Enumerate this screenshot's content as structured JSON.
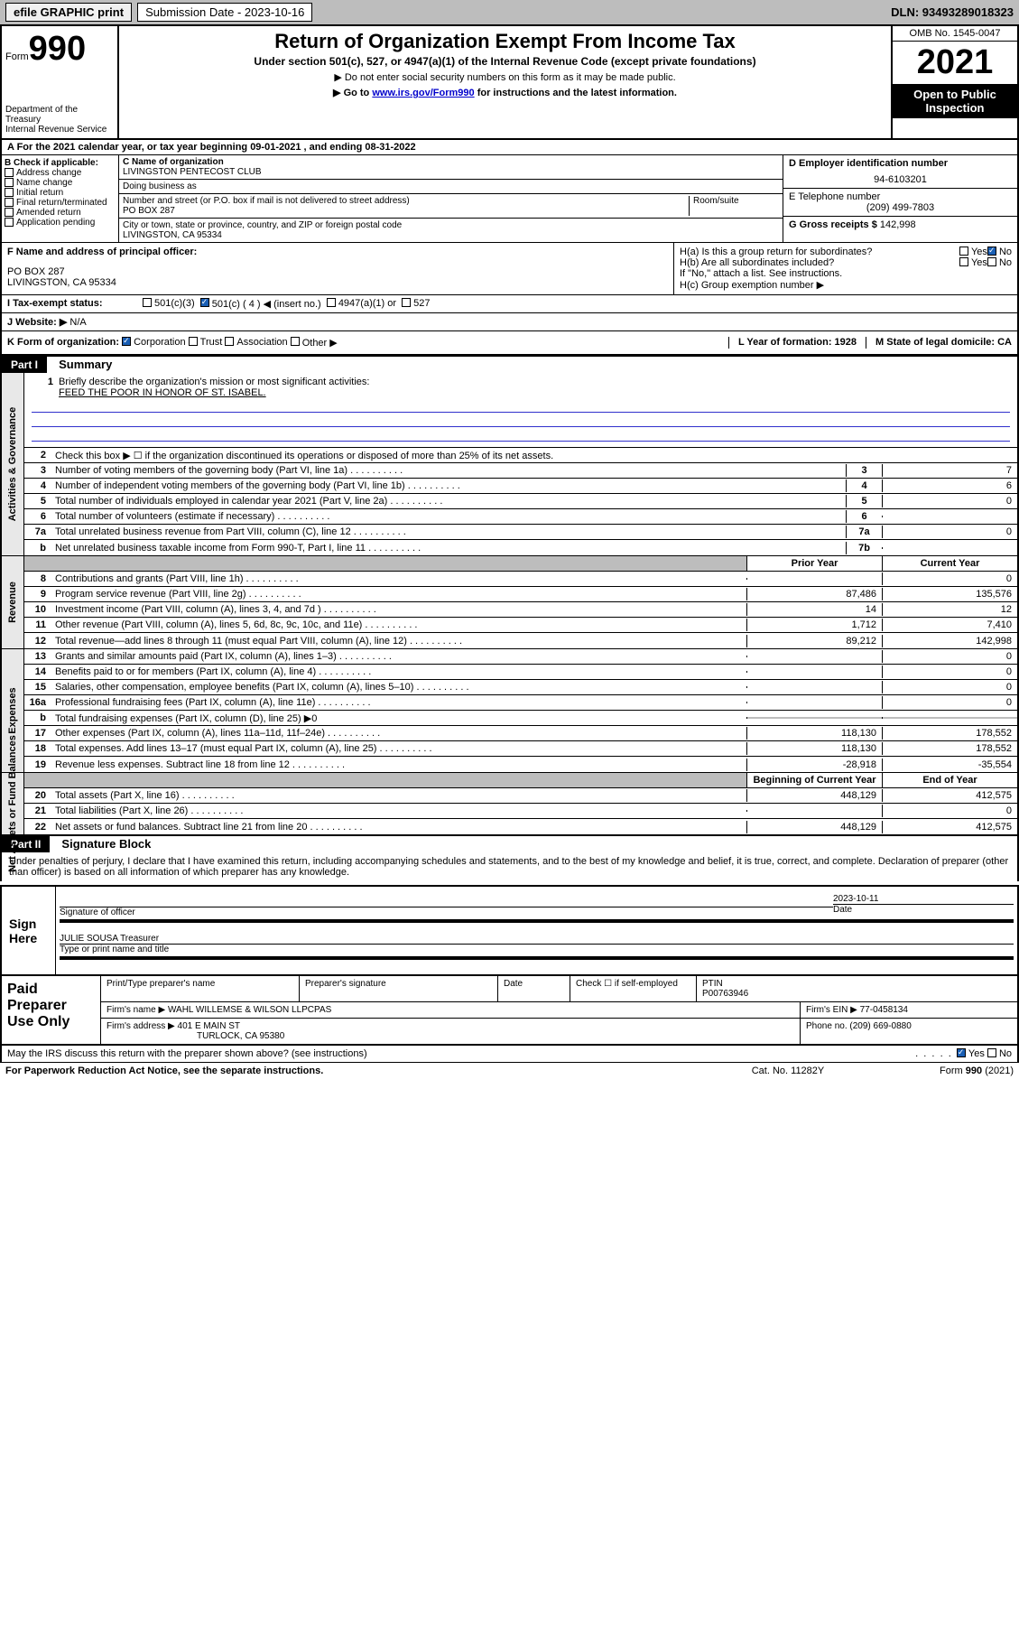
{
  "top": {
    "efile": "efile GRAPHIC print",
    "submission_label": "Submission Date - 2023-10-16",
    "dln": "DLN: 93493289018323"
  },
  "header": {
    "form_word": "Form",
    "form_num": "990",
    "title": "Return of Organization Exempt From Income Tax",
    "subtitle": "Under section 501(c), 527, or 4947(a)(1) of the Internal Revenue Code (except private foundations)",
    "note1": "▶ Do not enter social security numbers on this form as it may be made public.",
    "note2_pre": "▶ Go to ",
    "note2_link": "www.irs.gov/Form990",
    "note2_post": " for instructions and the latest information.",
    "dept": "Department of the Treasury\nInternal Revenue Service",
    "omb": "OMB No. 1545-0047",
    "year": "2021",
    "open": "Open to Public Inspection"
  },
  "period": "A For the 2021 calendar year, or tax year beginning 09-01-2021    , and ending 08-31-2022",
  "b": {
    "label": "B Check if applicable:",
    "items": [
      "Address change",
      "Name change",
      "Initial return",
      "Final return/terminated",
      "Amended return",
      "Application pending"
    ]
  },
  "c": {
    "name_hdr": "C Name of organization",
    "name": "LIVINGSTON PENTECOST CLUB",
    "dba_hdr": "Doing business as",
    "addr_hdr": "Number and street (or P.O. box if mail is not delivered to street address)",
    "room_hdr": "Room/suite",
    "addr": "PO BOX 287",
    "city_hdr": "City or town, state or province, country, and ZIP or foreign postal code",
    "city": "LIVINGSTON, CA  95334"
  },
  "d": {
    "label": "D Employer identification number",
    "value": "94-6103201"
  },
  "e": {
    "label": "E Telephone number",
    "value": "(209) 499-7803"
  },
  "g": {
    "label": "G Gross receipts $",
    "value": "142,998"
  },
  "f": {
    "label": "F  Name and address of principal officer:",
    "addr1": "PO BOX 287",
    "addr2": "LIVINGSTON, CA  95334"
  },
  "h": {
    "ha": "H(a)  Is this a group return for subordinates?",
    "hb": "H(b)  Are all subordinates included?",
    "hb_note": "If \"No,\" attach a list. See instructions.",
    "hc": "H(c)  Group exemption number ▶",
    "yes": "Yes",
    "no": "No"
  },
  "i": {
    "label": "I  Tax-exempt status:",
    "c3": "501(c)(3)",
    "c4": "501(c) ( 4 ) ◀ (insert no.)",
    "a1": "4947(a)(1) or",
    "s527": "527"
  },
  "j": {
    "label": "J  Website: ▶",
    "value": "N/A"
  },
  "k": {
    "label": "K Form of organization:",
    "corp": "Corporation",
    "trust": "Trust",
    "assoc": "Association",
    "other": "Other ▶"
  },
  "l": {
    "label": "L Year of formation: 1928"
  },
  "m": {
    "label": "M State of legal domicile: CA"
  },
  "part1": {
    "header": "Part I",
    "title": "Summary",
    "line1": "Briefly describe the organization's mission or most significant activities:",
    "mission": "FEED THE POOR IN HONOR OF ST. ISABEL.",
    "line2": "Check this box ▶ ☐  if the organization discontinued its operations or disposed of more than 25% of its net assets.",
    "prior_year": "Prior Year",
    "current_year": "Current Year",
    "begin_year": "Beginning of Current Year",
    "end_year": "End of Year"
  },
  "sides": {
    "gov": "Activities & Governance",
    "rev": "Revenue",
    "exp": "Expenses",
    "net": "Net Assets or Fund Balances"
  },
  "rows_gov": [
    {
      "n": "3",
      "label": "Number of voting members of the governing body (Part VI, line 1a)",
      "box": "3",
      "val": "7"
    },
    {
      "n": "4",
      "label": "Number of independent voting members of the governing body (Part VI, line 1b)",
      "box": "4",
      "val": "6"
    },
    {
      "n": "5",
      "label": "Total number of individuals employed in calendar year 2021 (Part V, line 2a)",
      "box": "5",
      "val": "0"
    },
    {
      "n": "6",
      "label": "Total number of volunteers (estimate if necessary)",
      "box": "6",
      "val": ""
    },
    {
      "n": "7a",
      "label": "Total unrelated business revenue from Part VIII, column (C), line 12",
      "box": "7a",
      "val": "0"
    },
    {
      "n": "b",
      "label": "Net unrelated business taxable income from Form 990-T, Part I, line 11",
      "box": "7b",
      "val": ""
    }
  ],
  "rows_rev": [
    {
      "n": "8",
      "label": "Contributions and grants (Part VIII, line 1h)",
      "prior": "",
      "curr": "0"
    },
    {
      "n": "9",
      "label": "Program service revenue (Part VIII, line 2g)",
      "prior": "87,486",
      "curr": "135,576"
    },
    {
      "n": "10",
      "label": "Investment income (Part VIII, column (A), lines 3, 4, and 7d )",
      "prior": "14",
      "curr": "12"
    },
    {
      "n": "11",
      "label": "Other revenue (Part VIII, column (A), lines 5, 6d, 8c, 9c, 10c, and 11e)",
      "prior": "1,712",
      "curr": "7,410"
    },
    {
      "n": "12",
      "label": "Total revenue—add lines 8 through 11 (must equal Part VIII, column (A), line 12)",
      "prior": "89,212",
      "curr": "142,998"
    }
  ],
  "rows_exp": [
    {
      "n": "13",
      "label": "Grants and similar amounts paid (Part IX, column (A), lines 1–3)",
      "prior": "",
      "curr": "0"
    },
    {
      "n": "14",
      "label": "Benefits paid to or for members (Part IX, column (A), line 4)",
      "prior": "",
      "curr": "0"
    },
    {
      "n": "15",
      "label": "Salaries, other compensation, employee benefits (Part IX, column (A), lines 5–10)",
      "prior": "",
      "curr": "0"
    },
    {
      "n": "16a",
      "label": "Professional fundraising fees (Part IX, column (A), line 11e)",
      "prior": "",
      "curr": "0"
    },
    {
      "n": "b",
      "label": "Total fundraising expenses (Part IX, column (D), line 25) ▶0",
      "shaded": true
    },
    {
      "n": "17",
      "label": "Other expenses (Part IX, column (A), lines 11a–11d, 11f–24e)",
      "prior": "118,130",
      "curr": "178,552"
    },
    {
      "n": "18",
      "label": "Total expenses. Add lines 13–17 (must equal Part IX, column (A), line 25)",
      "prior": "118,130",
      "curr": "178,552"
    },
    {
      "n": "19",
      "label": "Revenue less expenses. Subtract line 18 from line 12",
      "prior": "-28,918",
      "curr": "-35,554"
    }
  ],
  "rows_net": [
    {
      "n": "20",
      "label": "Total assets (Part X, line 16)",
      "prior": "448,129",
      "curr": "412,575"
    },
    {
      "n": "21",
      "label": "Total liabilities (Part X, line 26)",
      "prior": "",
      "curr": "0"
    },
    {
      "n": "22",
      "label": "Net assets or fund balances. Subtract line 21 from line 20",
      "prior": "448,129",
      "curr": "412,575"
    }
  ],
  "part2": {
    "header": "Part II",
    "title": "Signature Block",
    "declaration": "Under penalties of perjury, I declare that I have examined this return, including accompanying schedules and statements, and to the best of my knowledge and belief, it is true, correct, and complete. Declaration of preparer (other than officer) is based on all information of which preparer has any knowledge."
  },
  "sign": {
    "label": "Sign Here",
    "sig_of_officer": "Signature of officer",
    "date_label": "Date",
    "date": "2023-10-11",
    "name": "JULIE SOUSA Treasurer",
    "name_label": "Type or print name and title"
  },
  "paid": {
    "label": "Paid Preparer Use Only",
    "cols": [
      "Print/Type preparer's name",
      "Preparer's signature",
      "Date"
    ],
    "check_if": "Check ☐ if self-employed",
    "ptin_label": "PTIN",
    "ptin": "P00763946",
    "firm_name_label": "Firm's name    ▶",
    "firm_name": "WAHL WILLEMSE & WILSON LLPCPAS",
    "firm_ein_label": "Firm's EIN ▶",
    "firm_ein": "77-0458134",
    "firm_addr_label": "Firm's address ▶",
    "firm_addr1": "401 E MAIN ST",
    "firm_addr2": "TURLOCK, CA  95380",
    "phone_label": "Phone no.",
    "phone": "(209) 669-0880"
  },
  "discuss": "May the IRS discuss this return with the preparer shown above? (see instructions)",
  "footer": {
    "left": "For Paperwork Reduction Act Notice, see the separate instructions.",
    "mid": "Cat. No. 11282Y",
    "right": "Form 990 (2021)"
  },
  "colors": {
    "topbar": "#bdbdbd",
    "link": "#0000cc",
    "black": "#000000",
    "check": "#1a5fb4"
  }
}
